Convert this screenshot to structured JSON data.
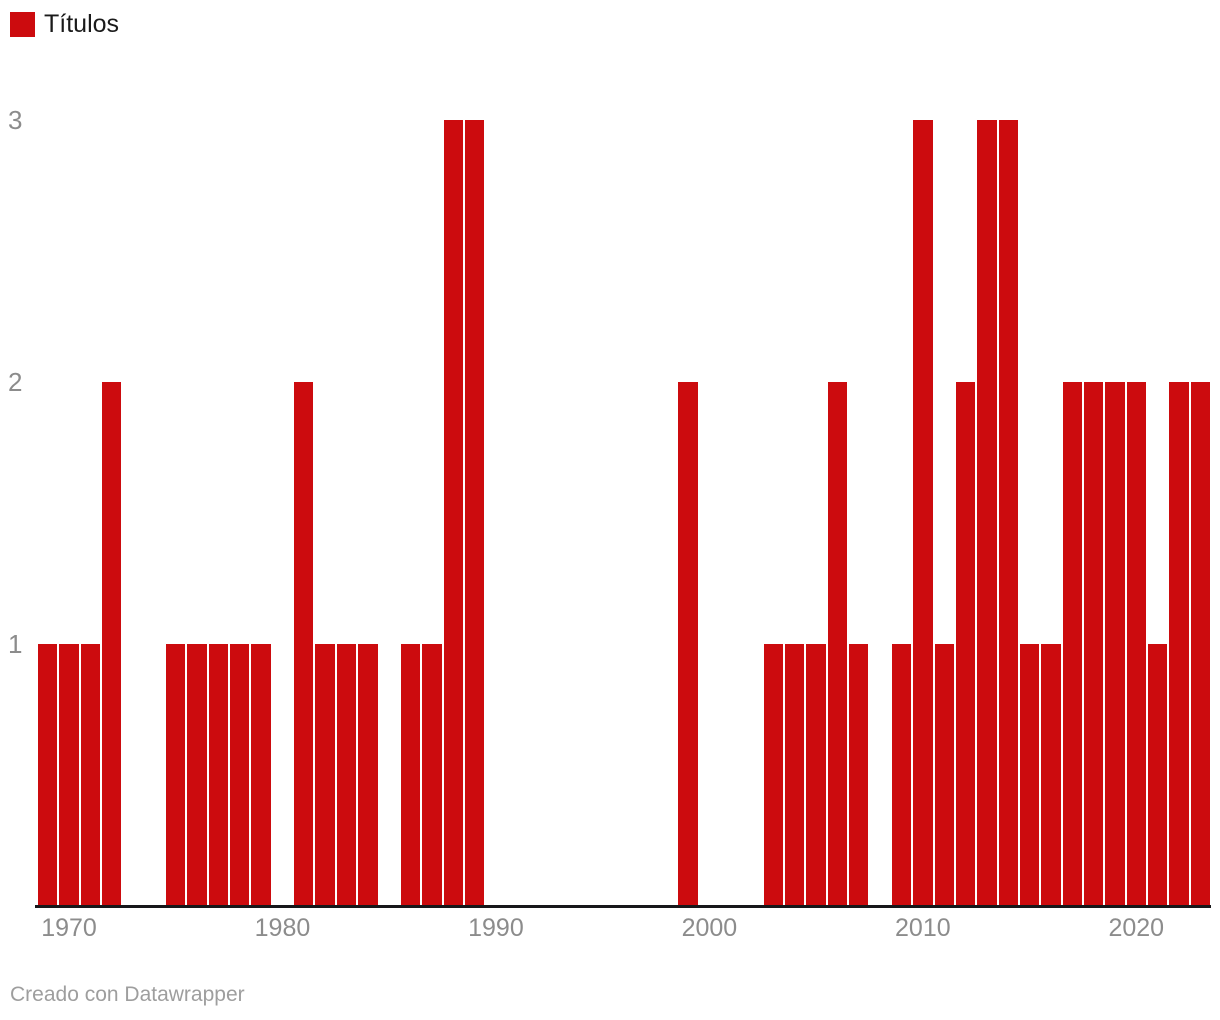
{
  "legend": {
    "swatch_icon": "legend-color-square",
    "label": "Títulos"
  },
  "footer": {
    "credit": "Creado con Datawrapper"
  },
  "chart_data": {
    "type": "bar",
    "title": "",
    "series_name": "Títulos",
    "bar_color": "#cc0b0e",
    "axis_line_color": "#17171a",
    "tick_label_color": "#8c8c8c",
    "legend_position": "top-left",
    "grid": false,
    "ylim": [
      0,
      3
    ],
    "yticks": [
      1,
      2,
      3
    ],
    "xticks": [
      1970,
      1980,
      1990,
      2000,
      2010,
      2020
    ],
    "x": [
      1969,
      1970,
      1971,
      1972,
      1973,
      1974,
      1975,
      1976,
      1977,
      1978,
      1979,
      1980,
      1981,
      1982,
      1983,
      1984,
      1985,
      1986,
      1987,
      1988,
      1989,
      1990,
      1991,
      1992,
      1993,
      1994,
      1995,
      1996,
      1997,
      1998,
      1999,
      2000,
      2001,
      2002,
      2003,
      2004,
      2005,
      2006,
      2007,
      2008,
      2009,
      2010,
      2011,
      2012,
      2013,
      2014,
      2015,
      2016,
      2017,
      2018,
      2019,
      2020,
      2021,
      2022,
      2023
    ],
    "values": [
      1,
      1,
      1,
      2,
      0,
      0,
      1,
      1,
      1,
      1,
      1,
      0,
      2,
      1,
      1,
      1,
      0,
      1,
      1,
      3,
      3,
      0,
      0,
      0,
      0,
      0,
      0,
      0,
      0,
      0,
      2,
      0,
      0,
      0,
      1,
      1,
      1,
      2,
      1,
      0,
      1,
      3,
      1,
      2,
      3,
      3,
      1,
      1,
      2,
      2,
      2,
      2,
      1,
      2,
      2
    ]
  }
}
